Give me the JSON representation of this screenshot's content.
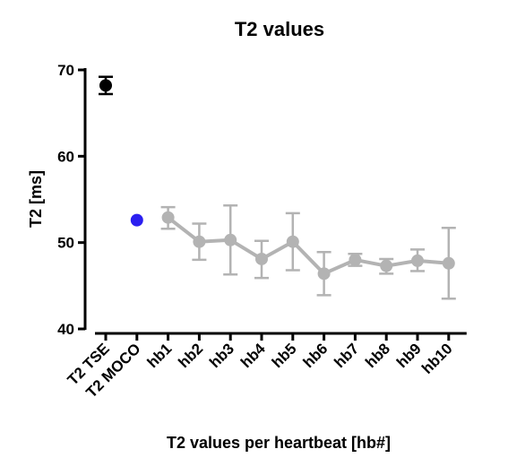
{
  "chart_data": {
    "type": "scatter",
    "title": "T2 values",
    "xlabel": "T2 values per heartbeat [hb#]",
    "ylabel": "T2 [ms]",
    "ylim": [
      40,
      70
    ],
    "yticks": [
      40,
      50,
      60,
      70
    ],
    "categories": [
      "T2 TSE",
      "T2 MOCO",
      "hb1",
      "hb2",
      "hb3",
      "hb4",
      "hb5",
      "hb6",
      "hb7",
      "hb8",
      "hb9",
      "hb10"
    ],
    "grid": false,
    "legend": "none",
    "series": [
      {
        "style": "point-errorbar",
        "color": "#000000",
        "points": [
          {
            "category": "T2 TSE",
            "y": 68.2,
            "err_low": 67.2,
            "err_high": 69.2
          }
        ]
      },
      {
        "style": "point",
        "color": "#2b1ff0",
        "points": [
          {
            "category": "T2 MOCO",
            "y": 52.6
          }
        ]
      },
      {
        "style": "line-errorbar",
        "color": "#b3b3b3",
        "points": [
          {
            "category": "hb1",
            "y": 52.9,
            "err_low": 51.6,
            "err_high": 54.1
          },
          {
            "category": "hb2",
            "y": 50.1,
            "err_low": 48.0,
            "err_high": 52.2
          },
          {
            "category": "hb3",
            "y": 50.3,
            "err_low": 46.3,
            "err_high": 54.3
          },
          {
            "category": "hb4",
            "y": 48.1,
            "err_low": 45.9,
            "err_high": 50.2
          },
          {
            "category": "hb5",
            "y": 50.1,
            "err_low": 46.8,
            "err_high": 53.4
          },
          {
            "category": "hb6",
            "y": 46.4,
            "err_low": 43.9,
            "err_high": 48.9
          },
          {
            "category": "hb7",
            "y": 48.0,
            "err_low": 47.3,
            "err_high": 48.7
          },
          {
            "category": "hb8",
            "y": 47.3,
            "err_low": 46.4,
            "err_high": 48.1
          },
          {
            "category": "hb9",
            "y": 47.9,
            "err_low": 46.7,
            "err_high": 49.2
          },
          {
            "category": "hb10",
            "y": 47.6,
            "err_low": 43.5,
            "err_high": 51.7
          }
        ]
      }
    ]
  }
}
